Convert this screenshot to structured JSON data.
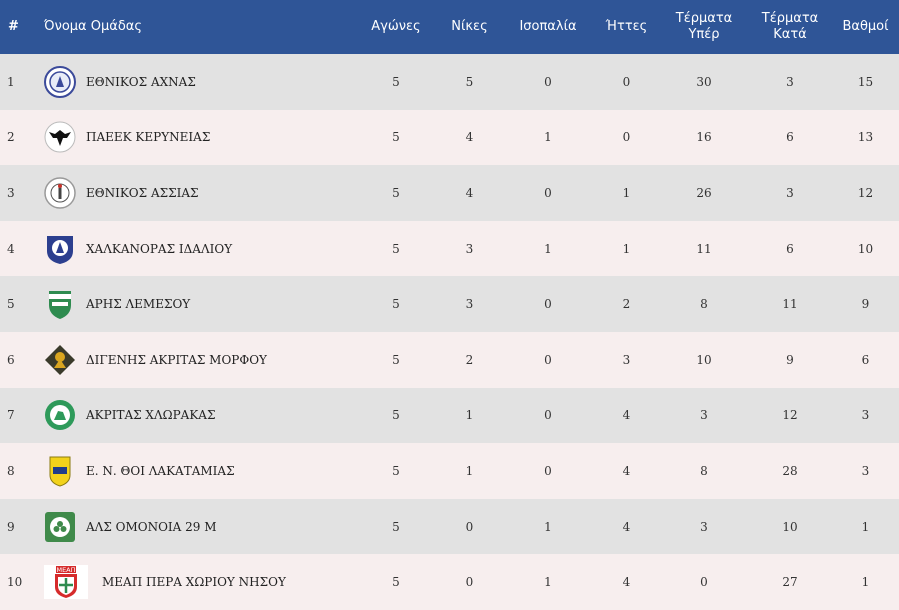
{
  "headers": {
    "rank": "#",
    "team": "Όνομα Ομάδας",
    "played": "Αγώνες",
    "wins": "Νίκες",
    "draws": "Ισοπαλία",
    "losses": "Ήττες",
    "gf_line1": "Τέρματα",
    "gf_line2": "Υπέρ",
    "ga_line1": "Τέρματα",
    "ga_line2": "Κατά",
    "points": "Βαθμοί"
  },
  "colors": {
    "header_bg": "#2f5597",
    "row_odd": "#e2e2e2",
    "row_even": "#f7eeee"
  },
  "rows": [
    {
      "rank": "1",
      "team": "ΕΘΝΙΚΟΣ ΑΧΝΑΣ",
      "logo": "ethnikos-achnas-crest-icon",
      "played": "5",
      "wins": "5",
      "draws": "0",
      "losses": "0",
      "gf": "30",
      "ga": "3",
      "points": "15"
    },
    {
      "rank": "2",
      "team": "ΠΑΕΕΚ ΚΕΡΥΝΕΙΑΣ",
      "logo": "paeek-eagle-crest-icon",
      "played": "5",
      "wins": "4",
      "draws": "1",
      "losses": "0",
      "gf": "16",
      "ga": "6",
      "points": "13"
    },
    {
      "rank": "3",
      "team": "ΕΘΝΙΚΟΣ ΑΣΣΙΑΣ",
      "logo": "ethnikos-assias-crest-icon",
      "played": "5",
      "wins": "4",
      "draws": "0",
      "losses": "1",
      "gf": "26",
      "ga": "3",
      "points": "12"
    },
    {
      "rank": "4",
      "team": "ΧΑΛΚΑΝΟΡΑΣ ΙΔΑΛΙΟΥ",
      "logo": "chalkanoras-crest-icon",
      "played": "5",
      "wins": "3",
      "draws": "1",
      "losses": "1",
      "gf": "11",
      "ga": "6",
      "points": "10"
    },
    {
      "rank": "5",
      "team": "ΑΡΗΣ ΛΕΜΕΣΟΥ",
      "logo": "aris-limassol-crest-icon",
      "played": "5",
      "wins": "3",
      "draws": "0",
      "losses": "2",
      "gf": "8",
      "ga": "11",
      "points": "9"
    },
    {
      "rank": "6",
      "team": "ΔΙΓΕΝΗΣ ΑΚΡΙΤΑΣ ΜΟΡΦΟΥ",
      "logo": "digenis-morfou-crest-icon",
      "played": "5",
      "wins": "2",
      "draws": "0",
      "losses": "3",
      "gf": "10",
      "ga": "9",
      "points": "6"
    },
    {
      "rank": "7",
      "team": "ΑΚΡΙΤΑΣ ΧΛΩΡΑΚΑΣ",
      "logo": "akritas-chlorakas-crest-icon",
      "played": "5",
      "wins": "1",
      "draws": "0",
      "losses": "4",
      "gf": "3",
      "ga": "12",
      "points": "3"
    },
    {
      "rank": "8",
      "team": "Ε. Ν. ΘΟΙ ΛΑΚΑΤΑΜΙΑΣ",
      "logo": "thoi-lakatamias-crest-icon",
      "played": "5",
      "wins": "1",
      "draws": "0",
      "losses": "4",
      "gf": "8",
      "ga": "28",
      "points": "3"
    },
    {
      "rank": "9",
      "team": "ΑΛΣ ΟΜΟΝΟΙΑ 29 Μ",
      "logo": "omonoia-29m-crest-icon",
      "played": "5",
      "wins": "0",
      "draws": "1",
      "losses": "4",
      "gf": "3",
      "ga": "10",
      "points": "1"
    },
    {
      "rank": "10",
      "team": "ΜΕΑΠ ΠΕΡΑ ΧΩΡΙΟΥ ΝΗΣΟΥ",
      "logo": "meap-crest-icon",
      "logo_text": "ΜΕΑΠ",
      "played": "5",
      "wins": "0",
      "draws": "1",
      "losses": "4",
      "gf": "0",
      "ga": "27",
      "points": "1"
    }
  ]
}
